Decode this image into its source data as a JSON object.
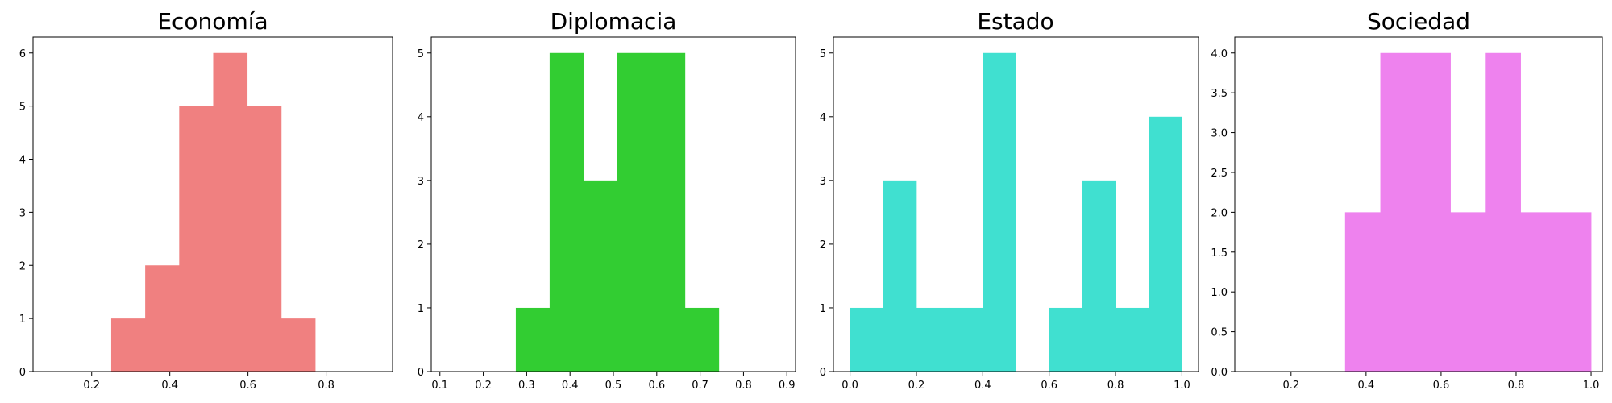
{
  "chart_data": [
    {
      "type": "histogram",
      "title": "Economía",
      "color": "#f08080",
      "xlabel": "",
      "ylabel": "",
      "xlim": [
        0.05,
        0.97
      ],
      "ylim": [
        0,
        6.3
      ],
      "xticks": [
        0.2,
        0.4,
        0.6,
        0.8
      ],
      "xtick_labels": [
        "0.2",
        "0.4",
        "0.6",
        "0.8"
      ],
      "yticks": [
        0,
        1,
        2,
        3,
        4,
        5,
        6
      ],
      "ytick_labels": [
        "0",
        "1",
        "2",
        "3",
        "4",
        "5",
        "6"
      ],
      "bins": [
        0.25,
        0.337,
        0.424,
        0.511,
        0.598,
        0.685,
        0.772
      ],
      "counts": [
        1,
        2,
        5,
        6,
        5,
        1
      ]
    },
    {
      "type": "histogram",
      "title": "Diplomacia",
      "color": "#32cd32",
      "xlabel": "",
      "ylabel": "",
      "xlim": [
        0.08,
        0.92
      ],
      "ylim": [
        0,
        5.25
      ],
      "xticks": [
        0.1,
        0.2,
        0.3,
        0.4,
        0.5,
        0.6,
        0.7,
        0.8,
        0.9
      ],
      "xtick_labels": [
        "0.1",
        "0.2",
        "0.3",
        "0.4",
        "0.5",
        "0.6",
        "0.7",
        "0.8",
        "0.9"
      ],
      "yticks": [
        0,
        1,
        2,
        3,
        4,
        5
      ],
      "ytick_labels": [
        "0",
        "1",
        "2",
        "3",
        "4",
        "5"
      ],
      "bins": [
        0.275,
        0.353,
        0.431,
        0.509,
        0.587,
        0.665,
        0.743
      ],
      "counts": [
        1,
        5,
        3,
        5,
        5,
        1
      ]
    },
    {
      "type": "histogram",
      "title": "Estado",
      "color": "#40e0d0",
      "xlabel": "",
      "ylabel": "",
      "xlim": [
        -0.05,
        1.05
      ],
      "ylim": [
        0,
        5.25
      ],
      "xticks": [
        0.0,
        0.2,
        0.4,
        0.6,
        0.8,
        1.0
      ],
      "xtick_labels": [
        "0.0",
        "0.2",
        "0.4",
        "0.6",
        "0.8",
        "1.0"
      ],
      "yticks": [
        0,
        1,
        2,
        3,
        4,
        5
      ],
      "ytick_labels": [
        "0",
        "1",
        "2",
        "3",
        "4",
        "5"
      ],
      "bins": [
        0.0,
        0.1,
        0.2,
        0.3,
        0.4,
        0.5,
        0.6,
        0.7,
        0.8,
        0.9,
        1.0
      ],
      "counts": [
        1,
        3,
        1,
        1,
        5,
        0,
        1,
        3,
        1,
        4
      ]
    },
    {
      "type": "histogram",
      "title": "Sociedad",
      "color": "#ee82ee",
      "xlabel": "",
      "ylabel": "",
      "xlim": [
        0.05,
        1.03
      ],
      "ylim": [
        0,
        4.2
      ],
      "xticks": [
        0.2,
        0.4,
        0.6,
        0.8,
        1.0
      ],
      "xtick_labels": [
        "0.2",
        "0.4",
        "0.6",
        "0.8",
        "1.0"
      ],
      "yticks": [
        0.0,
        0.5,
        1.0,
        1.5,
        2.0,
        2.5,
        3.0,
        3.5,
        4.0
      ],
      "ytick_labels": [
        "0.0",
        "0.5",
        "1.0",
        "1.5",
        "2.0",
        "2.5",
        "3.0",
        "3.5",
        "4.0"
      ],
      "bins": [
        0.344,
        0.438,
        0.531,
        0.625,
        0.719,
        0.812,
        0.906,
        1.0
      ],
      "counts": [
        2,
        4,
        4,
        2,
        4,
        2,
        2
      ]
    }
  ]
}
